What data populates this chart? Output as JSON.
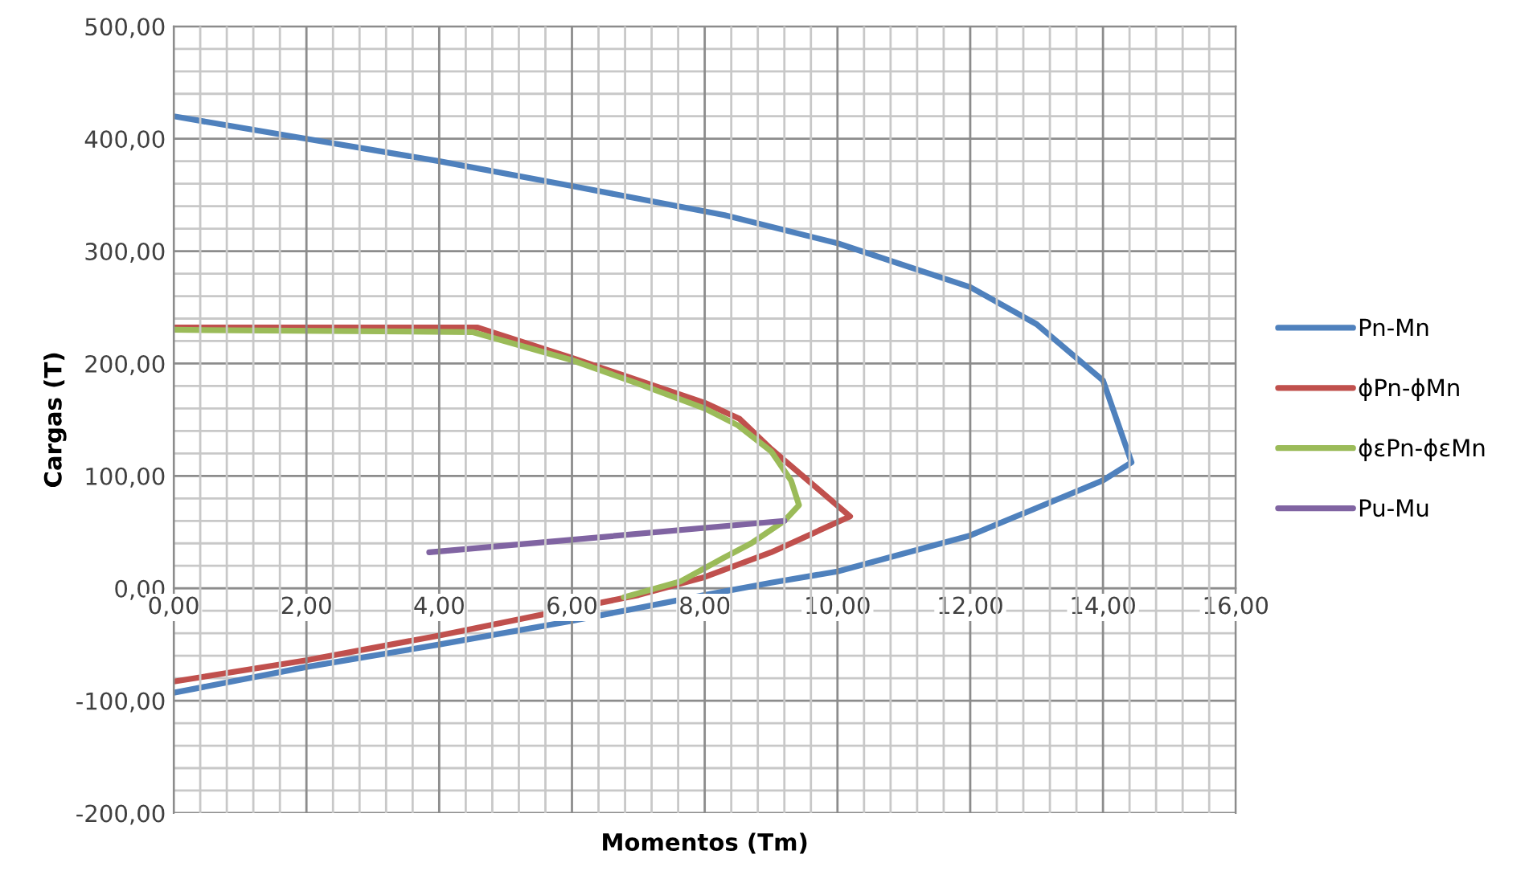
{
  "chart_data": {
    "type": "line",
    "xlabel": "Momentos (Tm)",
    "ylabel": "Cargas (T)",
    "xlim": [
      0,
      16
    ],
    "ylim": [
      -200,
      500
    ],
    "xticks": [
      {
        "value": 0,
        "label": "0,00"
      },
      {
        "value": 2,
        "label": "2,00"
      },
      {
        "value": 4,
        "label": "4,00"
      },
      {
        "value": 6,
        "label": "6,00"
      },
      {
        "value": 8,
        "label": "8,00"
      },
      {
        "value": 10,
        "label": "10,00"
      },
      {
        "value": 12,
        "label": "12,00"
      },
      {
        "value": 14,
        "label": "14,00"
      },
      {
        "value": 16,
        "label": "16,00"
      }
    ],
    "yticks": [
      {
        "value": -200,
        "label": "-200,00"
      },
      {
        "value": -100,
        "label": "-100,00"
      },
      {
        "value": 0,
        "label": "0,00"
      },
      {
        "value": 100,
        "label": "100,00"
      },
      {
        "value": 200,
        "label": "200,00"
      },
      {
        "value": 300,
        "label": "300,00"
      },
      {
        "value": 400,
        "label": "400,00"
      },
      {
        "value": 500,
        "label": "500,00"
      }
    ],
    "grid": true,
    "legend": "right",
    "marker": "none",
    "line_style": "solid",
    "series": [
      {
        "name": "Pn-Mn",
        "color": "#4f81bd",
        "x": [
          0,
          2,
          4,
          6,
          8.3,
          10,
          12,
          13,
          14,
          14.43,
          14,
          12,
          10,
          9,
          8,
          6,
          4,
          2,
          0
        ],
        "values": [
          420,
          400,
          380,
          358,
          332,
          307,
          268,
          235,
          185,
          112,
          96,
          47,
          15,
          5,
          -6,
          -29,
          -50,
          -70,
          -93
        ]
      },
      {
        "name": "ϕPn-ϕMn",
        "color": "#c0504d",
        "x": [
          0,
          4.58,
          6,
          7,
          8,
          8.52,
          9,
          10.19,
          9,
          8,
          7,
          6,
          4,
          2,
          0
        ],
        "values": [
          232,
          232,
          205,
          185,
          165,
          151,
          124,
          64,
          32,
          10,
          -6,
          -18,
          -42,
          -64,
          -83
        ]
      },
      {
        "name": "ϕεPn-ϕεMn",
        "color": "#9bbb59",
        "x": [
          0,
          4.5,
          6,
          7,
          8,
          8.5,
          9,
          9.3,
          9.42,
          9.2,
          8.7,
          8.28,
          7.63,
          6.78
        ],
        "values": [
          230,
          228,
          203,
          182,
          160,
          145,
          122,
          96,
          74,
          60,
          40,
          27,
          6,
          -8
        ]
      },
      {
        "name": "Pu-Mu",
        "color": "#8064a2",
        "x": [
          3.85,
          9.2
        ],
        "values": [
          32,
          60
        ]
      }
    ]
  }
}
